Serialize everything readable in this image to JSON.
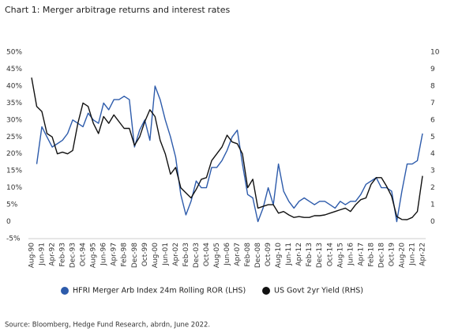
{
  "chart_data": {
    "type": "line",
    "title": "Chart 1: Merger arbitrage returns and interest rates",
    "source": "Source: Bloomberg, Hedge Fund Research, abrdn, June 2022.",
    "x": [
      "Aug-90",
      "Jan-91",
      "Jun-91",
      "Nov-91",
      "Apr-92",
      "Sep-92",
      "Feb-93",
      "Jul-93",
      "Dec-93",
      "May-94",
      "Oct-94",
      "Mar-95",
      "Aug-95",
      "Jan-96",
      "Jun-96",
      "Nov-96",
      "Apr-97",
      "Sep-97",
      "Feb-98",
      "Jul-98",
      "Dec-98",
      "May-99",
      "Oct-99",
      "Mar-00",
      "Aug-00",
      "Jan-01",
      "Jun-01",
      "Nov-01",
      "Apr-02",
      "Sep-02",
      "Feb-03",
      "Jul-03",
      "Dec-03",
      "May-04",
      "Oct-04",
      "Mar-05",
      "Aug-05",
      "Jan-06",
      "Jun-06",
      "Nov-06",
      "Apr-07",
      "Sep-07",
      "Feb-08",
      "Jul-08",
      "Dec-08",
      "May-09",
      "Oct-09",
      "Mar-10",
      "Aug-10",
      "Jan-11",
      "Jun-11",
      "Nov-11",
      "Apr-12",
      "Sep-12",
      "Feb-13",
      "Jul-13",
      "Dec-13",
      "May-14",
      "Oct-14",
      "Mar-15",
      "Aug-15",
      "Jan-16",
      "Jun-16",
      "Nov-16",
      "Apr-17",
      "Sep-17",
      "Feb-18",
      "Jul-18",
      "Dec-18",
      "May-19",
      "Oct-19",
      "Mar-20",
      "Aug-20",
      "Jan-21",
      "Jun-21",
      "Nov-21",
      "Apr-22"
    ],
    "xticks": [
      "Aug-90",
      "Jun-91",
      "Apr-92",
      "Feb-93",
      "Dec-93",
      "Oct-94",
      "Aug-95",
      "Jun-96",
      "Apr-97",
      "Feb-98",
      "Dec-98",
      "Oct-99",
      "Aug-00",
      "Jun-01",
      "Apr-02",
      "Feb-03",
      "Dec-03",
      "Oct-04",
      "Aug-05",
      "Jun-06",
      "Apr-07",
      "Feb-08",
      "Dec-08",
      "Oct-09",
      "Aug-10",
      "Jun-11",
      "Apr-12",
      "Feb-13",
      "Dec-13",
      "Oct-14",
      "Aug-15",
      "Jun-16",
      "Apr-17",
      "Feb-18",
      "Dec-18",
      "Oct-19",
      "Aug-20",
      "Jun-21",
      "Apr-22"
    ],
    "ylim": [
      -5,
      50
    ],
    "yticks": [
      {
        "value": 50,
        "label": "50%"
      },
      {
        "value": 45,
        "label": "45%"
      },
      {
        "value": 40,
        "label": "40%"
      },
      {
        "value": 35,
        "label": "35%"
      },
      {
        "value": 30,
        "label": "30%"
      },
      {
        "value": 25,
        "label": "25%"
      },
      {
        "value": 20,
        "label": "20%"
      },
      {
        "value": 15,
        "label": "15%"
      },
      {
        "value": 10,
        "label": "10%"
      },
      {
        "value": 5,
        "label": "5%"
      },
      0,
      {
        "value": -5,
        "label": "-5%"
      }
    ],
    "y2lim": [
      -1,
      10
    ],
    "y2ticks": [
      10,
      9,
      8,
      7,
      6,
      5,
      4,
      3,
      2,
      1,
      0
    ],
    "legend": "bottom",
    "series": [
      {
        "name": "HFRI Merger Arb Index 24m Rolling ROR (LHS)",
        "color": "#2d5bab",
        "values": [
          null,
          17,
          28,
          25,
          22,
          23,
          24,
          26,
          30,
          29,
          28,
          32,
          30,
          29,
          35,
          33,
          36,
          36,
          37,
          36,
          22,
          27,
          30,
          24,
          40,
          36,
          30,
          25,
          19,
          8,
          2,
          6,
          12,
          10,
          10,
          16,
          16,
          18,
          21,
          25,
          27,
          17,
          8,
          7,
          0,
          4,
          10,
          5,
          17,
          9,
          6,
          4,
          6,
          7,
          6,
          5,
          6,
          6,
          5,
          4,
          6,
          5,
          6,
          6,
          8,
          11,
          12,
          13,
          10,
          10,
          9,
          0,
          9,
          17,
          17,
          18,
          26
        ]
      },
      {
        "name": "US Govt 2yr Yield (RHS)",
        "color": "#111111",
        "axis": "y2",
        "values": [
          8.5,
          6.8,
          6.5,
          5.2,
          5,
          4,
          4.1,
          4,
          4.2,
          5.8,
          7,
          6.8,
          5.8,
          5.2,
          6.2,
          5.8,
          6.3,
          5.9,
          5.5,
          5.5,
          4.5,
          5,
          5.9,
          6.6,
          6.2,
          4.8,
          4,
          2.8,
          3.2,
          2,
          1.7,
          1.4,
          1.9,
          2.5,
          2.6,
          3.6,
          4,
          4.4,
          5.1,
          4.7,
          4.6,
          4,
          2,
          2.5,
          0.8,
          0.9,
          1,
          1,
          0.5,
          0.6,
          0.4,
          0.25,
          0.3,
          0.25,
          0.25,
          0.35,
          0.35,
          0.4,
          0.5,
          0.6,
          0.7,
          0.8,
          0.6,
          1,
          1.3,
          1.4,
          2.2,
          2.6,
          2.6,
          2.1,
          1.5,
          0.3,
          0.13,
          0.12,
          0.25,
          0.6,
          2.7
        ]
      }
    ]
  }
}
